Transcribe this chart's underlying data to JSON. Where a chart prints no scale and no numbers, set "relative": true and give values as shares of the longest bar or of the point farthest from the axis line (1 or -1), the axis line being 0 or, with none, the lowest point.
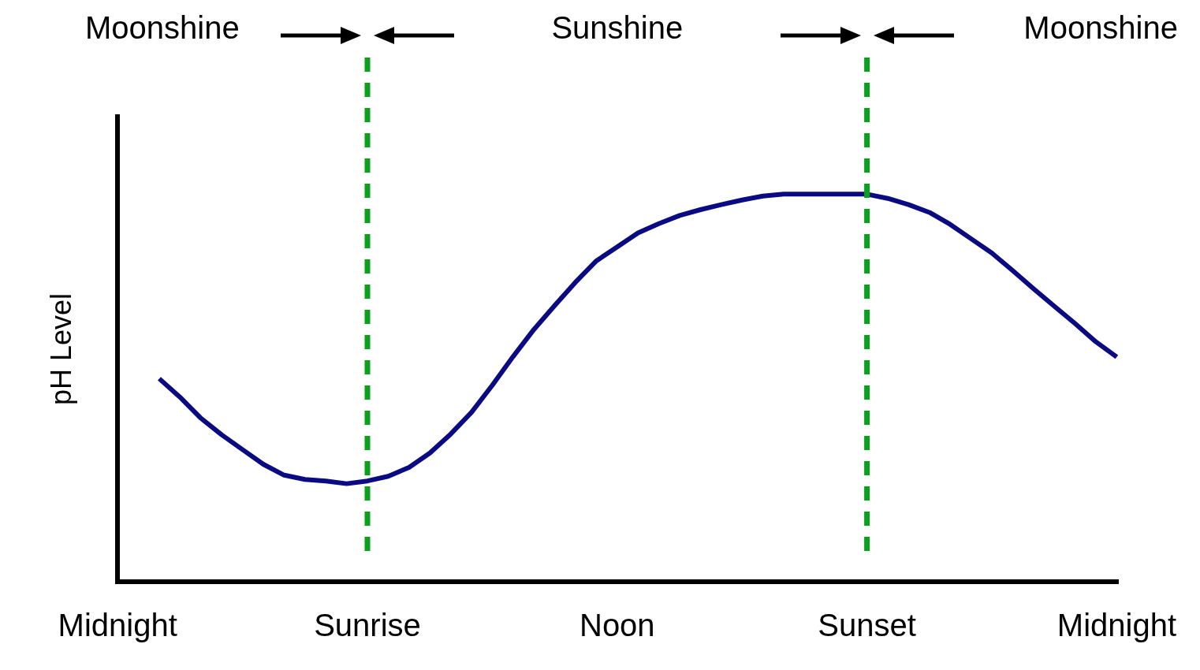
{
  "chart_data": {
    "type": "line",
    "ylabel": "pH Level",
    "relative": true,
    "categories": [
      "Midnight",
      null,
      null,
      null,
      null,
      null,
      null,
      null,
      null,
      null,
      null,
      null,
      "Sunrise",
      null,
      null,
      null,
      null,
      null,
      null,
      null,
      null,
      null,
      null,
      null,
      "Noon",
      null,
      null,
      null,
      null,
      null,
      null,
      null,
      null,
      null,
      null,
      null,
      "Sunset",
      null,
      null,
      null,
      null,
      null,
      null,
      null,
      null,
      null,
      null,
      null,
      "Midnight"
    ],
    "series": [
      {
        "color": "#0a0a82",
        "values": [
          null,
          null,
          0.524,
          0.476,
          0.422,
          0.379,
          0.341,
          0.303,
          0.275,
          0.264,
          0.26,
          0.253,
          0.26,
          0.272,
          0.295,
          0.332,
          0.381,
          0.437,
          0.507,
          0.581,
          0.651,
          0.713,
          0.773,
          0.828,
          0.864,
          0.9,
          0.924,
          0.945,
          0.96,
          0.973,
          0.985,
          0.995,
          1.0,
          1.0,
          1.0,
          1.0,
          1.0,
          0.989,
          0.973,
          0.953,
          0.922,
          0.885,
          0.848,
          0.803,
          0.756,
          0.711,
          0.666,
          0.619,
          0.58
        ]
      }
    ],
    "ref_lines": [
      {
        "axis": "x",
        "value": "Sunrise",
        "color": "#0aa01e",
        "line_style": "dashed"
      },
      {
        "axis": "x",
        "value": "Sunset",
        "color": "#0aa01e",
        "line_style": "dashed"
      }
    ],
    "annotations": [
      "Moonshine",
      "Sunshine",
      "Moonshine"
    ],
    "grid": false,
    "legend": false,
    "marker": "none",
    "line_style": "solid"
  }
}
